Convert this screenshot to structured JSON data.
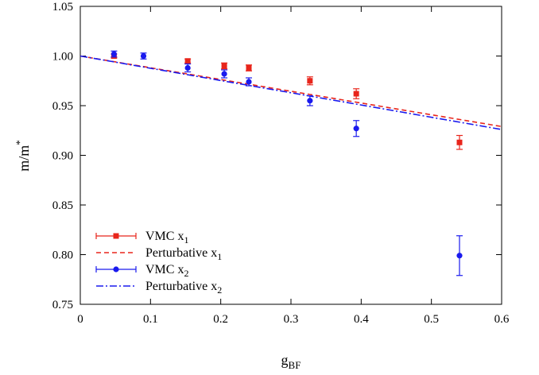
{
  "chart_data": {
    "type": "scatter",
    "xlabel": "g",
    "xlabel_sub": "BF",
    "ylabel": "m/m",
    "ylabel_sup": "*",
    "xlim": [
      0,
      0.6
    ],
    "ylim": [
      0.75,
      1.05
    ],
    "xticks": [
      "0",
      "0.1",
      "0.2",
      "0.3",
      "0.4",
      "0.5",
      "0.6"
    ],
    "yticks": [
      "0.75",
      "0.80",
      "0.85",
      "0.90",
      "0.95",
      "1.00",
      "1.05"
    ],
    "grid": false,
    "legend_position": "bottom-left",
    "series": [
      {
        "name": "VMC x",
        "name_sub": "1",
        "kind": "points_errorbars",
        "marker": "square",
        "color": "#e8251b",
        "x": [
          0.048,
          0.153,
          0.205,
          0.24,
          0.327,
          0.393,
          0.54
        ],
        "y": [
          1.0,
          0.995,
          0.99,
          0.988,
          0.975,
          0.962,
          0.913
        ],
        "err": [
          0.002,
          0.002,
          0.003,
          0.003,
          0.004,
          0.005,
          0.007
        ]
      },
      {
        "name": "Perturbative x",
        "name_sub": "1",
        "kind": "line",
        "dash": "dashed",
        "color": "#e8251b",
        "x": [
          0.0,
          0.6
        ],
        "y": [
          1.0,
          0.929
        ]
      },
      {
        "name": "VMC x",
        "name_sub": "2",
        "kind": "points_errorbars",
        "marker": "circle",
        "color": "#1a1aee",
        "x": [
          0.048,
          0.09,
          0.153,
          0.205,
          0.24,
          0.327,
          0.393,
          0.54
        ],
        "y": [
          1.002,
          1.0,
          0.988,
          0.982,
          0.974,
          0.955,
          0.927,
          0.799
        ],
        "err": [
          0.003,
          0.003,
          0.004,
          0.004,
          0.004,
          0.005,
          0.008,
          0.02
        ]
      },
      {
        "name": "Perturbative x",
        "name_sub": "2",
        "kind": "line",
        "dash": "dashdot",
        "color": "#1a1aee",
        "x": [
          0.0,
          0.6
        ],
        "y": [
          1.0,
          0.926
        ]
      }
    ]
  }
}
